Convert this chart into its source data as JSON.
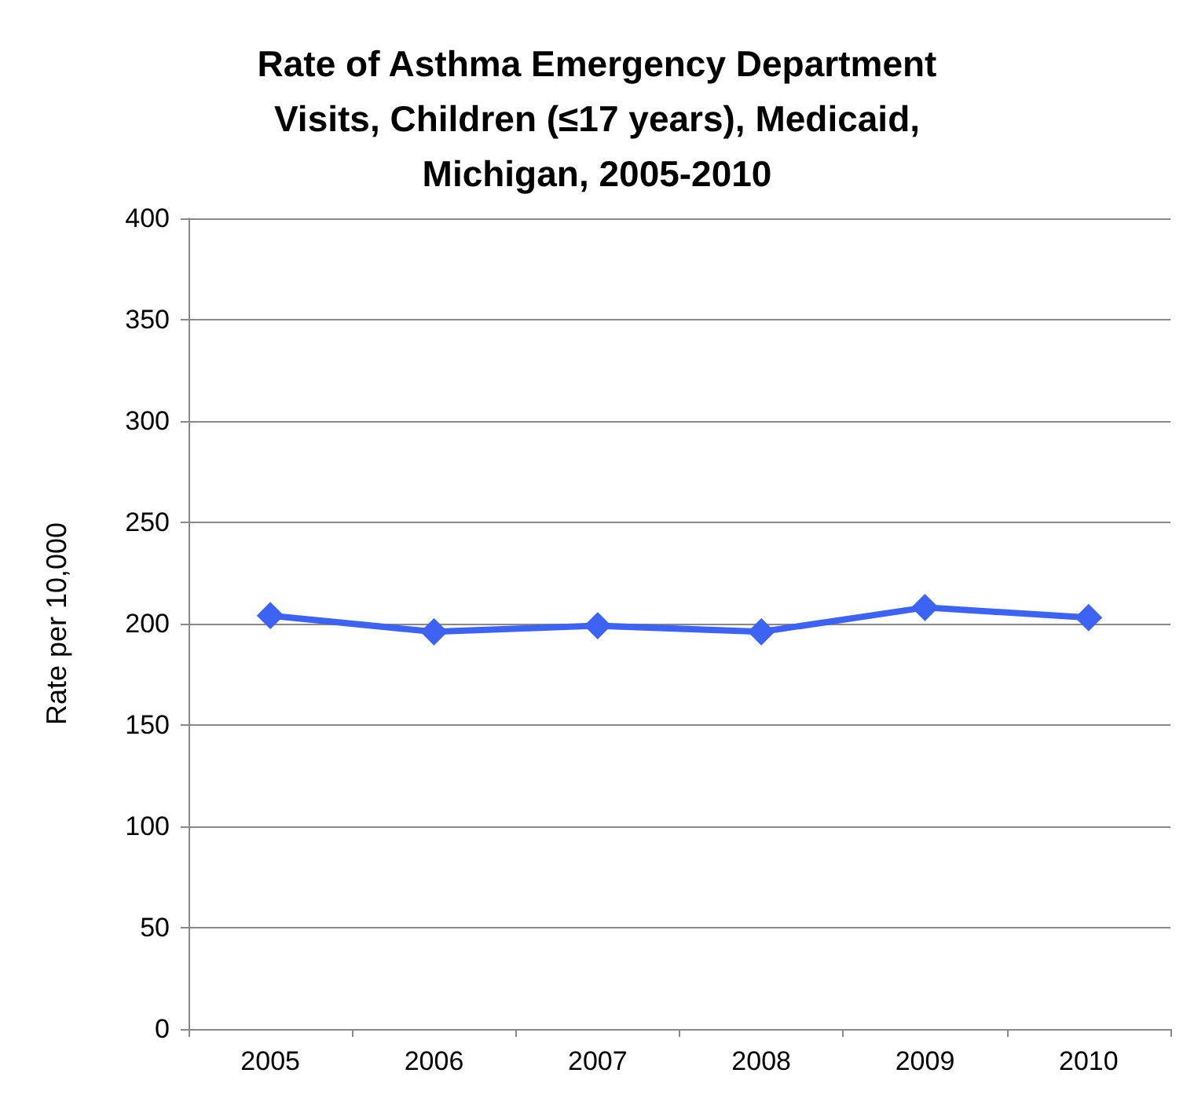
{
  "chart_data": {
    "type": "line",
    "title": "Rate of Asthma Emergency Department\nVisits, Children (≤17 years), Medicaid,\nMichigan, 2005-2010",
    "ylabel": "Rate per 10,000",
    "categories": [
      "2005",
      "2006",
      "2007",
      "2008",
      "2009",
      "2010"
    ],
    "series": [
      {
        "color": "#3d63f5",
        "values": [
          204,
          196,
          199,
          196,
          208,
          203
        ]
      }
    ],
    "ylim": [
      0,
      400
    ],
    "yticks": [
      0,
      50,
      100,
      150,
      200,
      250,
      300,
      350,
      400
    ],
    "grid": "y",
    "marker": "diamond",
    "line_style": "solid"
  }
}
